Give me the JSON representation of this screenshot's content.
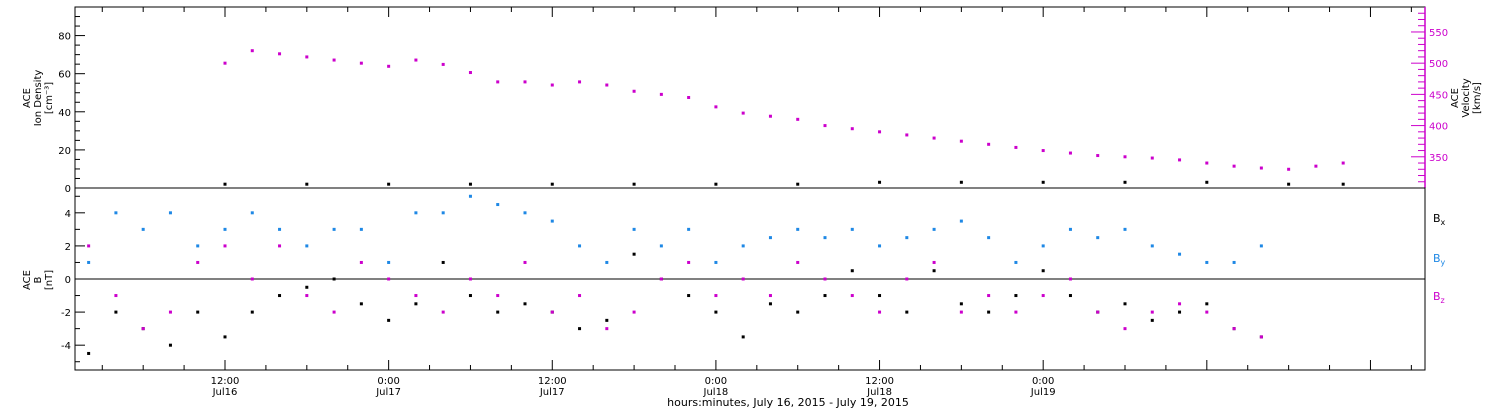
{
  "chart_data": [
    {
      "type": "scatter",
      "title": "",
      "ylabel_lines": [
        "ACE",
        "Ion Density",
        "[cm⁻³]"
      ],
      "y2label_lines": [
        "ACE",
        "Velocity",
        "[km/s]"
      ],
      "ylim": [
        0,
        95
      ],
      "yticks": [
        0,
        20,
        40,
        60,
        80
      ],
      "y2lim": [
        300,
        590
      ],
      "y2ticks": [
        350,
        400,
        450,
        500,
        550
      ],
      "grid": false,
      "series": [
        {
          "axis": "left",
          "color": "#000000",
          "x_hours": [
            0,
            6,
            12,
            18,
            24,
            30,
            36,
            42,
            48,
            54,
            60,
            66,
            72,
            78,
            82
          ],
          "y": [
            2,
            2,
            2,
            2,
            2,
            2,
            2,
            2,
            3,
            3,
            3,
            3,
            3,
            2,
            2
          ]
        },
        {
          "axis": "right",
          "color": "#cc00cc",
          "x_hours": [
            0,
            2,
            4,
            6,
            8,
            10,
            12,
            14,
            16,
            18,
            20,
            22,
            24,
            26,
            28,
            30,
            32,
            34,
            36,
            38,
            40,
            42,
            44,
            46,
            48,
            50,
            52,
            54,
            56,
            58,
            60,
            62,
            64,
            66,
            68,
            70,
            72,
            74,
            76,
            78,
            80,
            82
          ],
          "y": [
            500,
            520,
            515,
            510,
            505,
            500,
            495,
            505,
            498,
            485,
            470,
            470,
            465,
            470,
            465,
            455,
            450,
            445,
            430,
            420,
            415,
            410,
            400,
            395,
            390,
            385,
            380,
            375,
            370,
            365,
            360,
            356,
            352,
            350,
            348,
            345,
            340,
            335,
            332,
            330,
            335,
            340
          ]
        }
      ]
    },
    {
      "type": "scatter",
      "title": "",
      "ylabel_lines": [
        "ACE",
        "B",
        "[nT]"
      ],
      "ylim": [
        -5.5,
        5.5
      ],
      "yticks": [
        -4,
        -2,
        0,
        2,
        4
      ],
      "zero_line": true,
      "grid": false,
      "xlabel": "hours:minutes, July 16, 2015 - July 19, 2015",
      "xlim_hours": [
        -11,
        88
      ],
      "xticks": [
        {
          "hour": 0,
          "time": "12:00",
          "date": "Jul16"
        },
        {
          "hour": 12,
          "time": "0:00",
          "date": "Jul17"
        },
        {
          "hour": 24,
          "time": "12:00",
          "date": "Jul17"
        },
        {
          "hour": 36,
          "time": "0:00",
          "date": "Jul18"
        },
        {
          "hour": 48,
          "time": "12:00",
          "date": "Jul18"
        },
        {
          "hour": 60,
          "time": "0:00",
          "date": "Jul19"
        }
      ],
      "series": [
        {
          "name_base": "B",
          "name_sub": "x",
          "color": "#000000",
          "x_hours": [
            -10,
            -8,
            -6,
            -4,
            -2,
            0,
            2,
            4,
            6,
            8,
            10,
            12,
            14,
            16,
            18,
            20,
            22,
            24,
            26,
            28,
            30,
            32,
            34,
            36,
            38,
            40,
            42,
            44,
            46,
            48,
            50,
            52,
            54,
            56,
            58,
            60,
            62,
            64,
            66,
            68,
            70,
            72,
            74,
            76
          ],
          "y": [
            -4.5,
            -2,
            -3,
            -4,
            -2,
            -3.5,
            -2,
            -1,
            -0.5,
            0,
            -1.5,
            -2.5,
            -1.5,
            1,
            -1,
            -2,
            -1.5,
            -2,
            -3,
            -2.5,
            1.5,
            0,
            -1,
            -2,
            -3.5,
            -1.5,
            -2,
            -1,
            0.5,
            -1,
            -2,
            0.5,
            -1.5,
            -2,
            -1,
            0.5,
            -1,
            -2,
            -1.5,
            -2.5,
            -2,
            -1.5,
            -3,
            -3.5
          ]
        },
        {
          "name_base": "B",
          "name_sub": "y",
          "color": "#1e88e5",
          "x_hours": [
            -10,
            -8,
            -6,
            -4,
            -2,
            0,
            2,
            4,
            6,
            8,
            10,
            12,
            14,
            16,
            18,
            20,
            22,
            24,
            26,
            28,
            30,
            32,
            34,
            36,
            38,
            40,
            42,
            44,
            46,
            48,
            50,
            52,
            54,
            56,
            58,
            60,
            62,
            64,
            66,
            68,
            70,
            72,
            74,
            76
          ],
          "y": [
            1,
            4,
            3,
            4,
            2,
            3,
            4,
            3,
            2,
            3,
            3,
            1,
            4,
            4,
            5,
            4.5,
            4,
            3.5,
            2,
            1,
            3,
            2,
            3,
            1,
            2,
            2.5,
            3,
            2.5,
            3,
            2,
            2.5,
            3,
            3.5,
            2.5,
            1,
            2,
            3,
            2.5,
            3,
            2,
            1.5,
            1,
            1,
            2
          ]
        },
        {
          "name_base": "B",
          "name_sub": "z",
          "color": "#cc00cc",
          "x_hours": [
            -10,
            -8,
            -6,
            -4,
            -2,
            0,
            2,
            4,
            6,
            8,
            10,
            12,
            14,
            16,
            18,
            20,
            22,
            24,
            26,
            28,
            30,
            32,
            34,
            36,
            38,
            40,
            42,
            44,
            46,
            48,
            50,
            52,
            54,
            56,
            58,
            60,
            62,
            64,
            66,
            68,
            70,
            72,
            74,
            76
          ],
          "y": [
            2,
            -1,
            -3,
            -2,
            1,
            2,
            0,
            2,
            -1,
            -2,
            1,
            0,
            -1,
            -2,
            0,
            -1,
            1,
            -2,
            -1,
            -3,
            -2,
            0,
            1,
            -1,
            0,
            -1,
            1,
            0,
            -1,
            -2,
            0,
            1,
            -2,
            -1,
            -2,
            -1,
            0,
            -2,
            -3,
            -2,
            -1.5,
            -2,
            -3,
            -3.5
          ]
        }
      ]
    }
  ]
}
